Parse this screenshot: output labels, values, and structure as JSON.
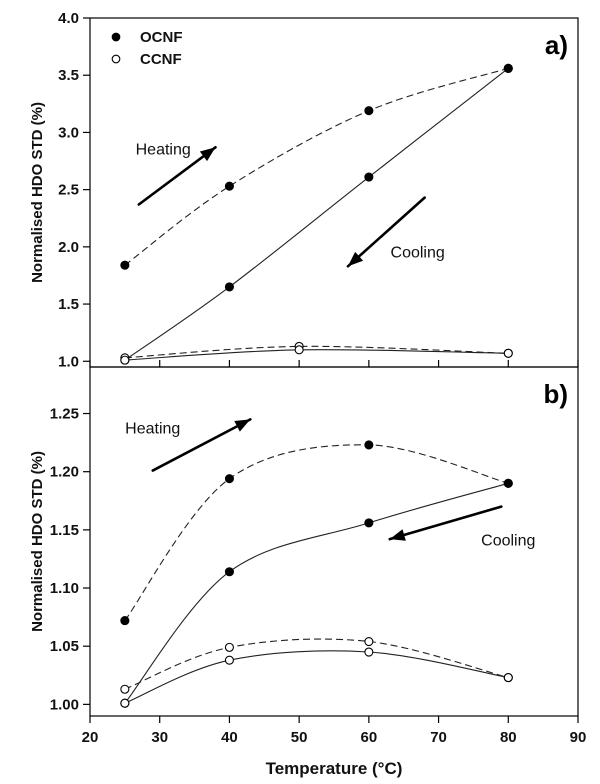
{
  "chart_data": [
    {
      "type": "line",
      "panel_label": "a)",
      "ylabel": "Normalised HDO STD (%)",
      "xlim": [
        20,
        90
      ],
      "ylim": [
        0.95,
        4.0
      ],
      "yticks": [
        1.0,
        1.5,
        2.0,
        2.5,
        3.0,
        3.5,
        4.0
      ],
      "ytick_labels": [
        "1.0",
        "1.5",
        "2.0",
        "2.5",
        "3.0",
        "3.5",
        "4.0"
      ],
      "legend": {
        "placement": "top-left",
        "entries": [
          {
            "label": "OCNF",
            "marker": "filled-circle"
          },
          {
            "label": "CCNF",
            "marker": "open-circle"
          }
        ]
      },
      "annotations": [
        {
          "text": "Heating",
          "x": 30.5,
          "y": 2.85,
          "arrow": {
            "from": [
              27,
              2.37
            ],
            "to": [
              38,
              2.87
            ]
          }
        },
        {
          "text": "Cooling",
          "x": 67,
          "y": 1.95,
          "arrow": {
            "from": [
              68,
              2.43
            ],
            "to": [
              57,
              1.83
            ]
          }
        }
      ],
      "series": [
        {
          "material": "OCNF",
          "phase": "heating",
          "style": "dashed",
          "marker": "filled",
          "x": [
            25,
            40,
            60,
            80
          ],
          "y": [
            1.84,
            2.53,
            3.19,
            3.56
          ]
        },
        {
          "material": "OCNF",
          "phase": "cooling",
          "style": "solid",
          "marker": "filled",
          "x": [
            80,
            60,
            40,
            25
          ],
          "y": [
            3.56,
            2.61,
            1.65,
            1.01
          ]
        },
        {
          "material": "CCNF",
          "phase": "heating",
          "style": "dashed",
          "marker": "open",
          "x": [
            25,
            50,
            80
          ],
          "y": [
            1.03,
            1.13,
            1.07
          ]
        },
        {
          "material": "CCNF",
          "phase": "cooling",
          "style": "solid",
          "marker": "open",
          "x": [
            80,
            50,
            25
          ],
          "y": [
            1.07,
            1.1,
            1.01
          ]
        }
      ]
    },
    {
      "type": "line",
      "panel_label": "b)",
      "ylabel": "Normalised HDO STD (%)",
      "xlabel": "Temperature (°C)",
      "xlim": [
        20,
        90
      ],
      "xticks": [
        20,
        30,
        40,
        50,
        60,
        70,
        80,
        90
      ],
      "xtick_labels": [
        "20",
        "30",
        "40",
        "50",
        "60",
        "70",
        "80",
        "90"
      ],
      "ylim": [
        0.99,
        1.29
      ],
      "yticks": [
        1.0,
        1.05,
        1.1,
        1.15,
        1.2,
        1.25
      ],
      "ytick_labels": [
        "1.00",
        "1.05",
        "1.10",
        "1.15",
        "1.20",
        "1.25"
      ],
      "annotations": [
        {
          "text": "Heating",
          "x": 29,
          "y": 1.237,
          "arrow": {
            "from": [
              29,
              1.201
            ],
            "to": [
              43,
              1.245
            ]
          }
        },
        {
          "text": "Cooling",
          "x": 80,
          "y": 1.141,
          "arrow": {
            "from": [
              79,
              1.17
            ],
            "to": [
              63,
              1.142
            ]
          }
        }
      ],
      "series": [
        {
          "material": "OCNF",
          "phase": "heating",
          "style": "dashed",
          "marker": "filled",
          "x": [
            25,
            40,
            60,
            80
          ],
          "y": [
            1.072,
            1.194,
            1.223,
            1.19
          ]
        },
        {
          "material": "OCNF",
          "phase": "cooling",
          "style": "solid",
          "marker": "filled",
          "x": [
            80,
            60,
            40,
            25
          ],
          "y": [
            1.19,
            1.156,
            1.114,
            1.001
          ]
        },
        {
          "material": "CCNF",
          "phase": "heating",
          "style": "dashed",
          "marker": "open",
          "x": [
            25,
            40,
            60,
            80
          ],
          "y": [
            1.013,
            1.049,
            1.054,
            1.023
          ]
        },
        {
          "material": "CCNF",
          "phase": "cooling",
          "style": "solid",
          "marker": "open",
          "x": [
            80,
            60,
            40,
            25
          ],
          "y": [
            1.023,
            1.045,
            1.038,
            1.001
          ]
        }
      ]
    }
  ]
}
